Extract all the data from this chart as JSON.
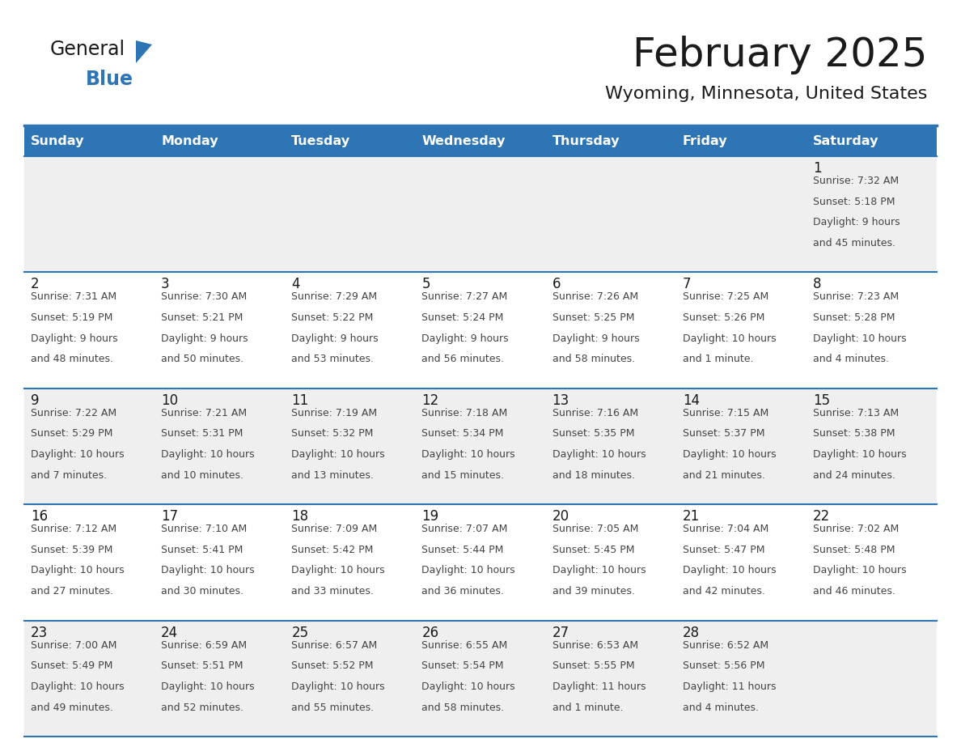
{
  "title": "February 2025",
  "subtitle": "Wyoming, Minnesota, United States",
  "days_of_week": [
    "Sunday",
    "Monday",
    "Tuesday",
    "Wednesday",
    "Thursday",
    "Friday",
    "Saturday"
  ],
  "header_bg": "#2E75B6",
  "header_text_color": "#FFFFFF",
  "cell_bg_odd": "#EFEFEF",
  "cell_bg_even": "#FFFFFF",
  "separator_color": "#2E75B6",
  "text_color": "#444444",
  "day_num_color": "#1a1a1a",
  "title_color": "#1a1a1a",
  "logo_general_color": "#1a1a1a",
  "logo_blue_color": "#2E75B6",
  "logo_triangle_color": "#2E75B6",
  "calendar_data": [
    [
      null,
      null,
      null,
      null,
      null,
      null,
      {
        "day": 1,
        "sunrise": "7:32 AM",
        "sunset": "5:18 PM",
        "daylight": "9 hours and 45 minutes."
      }
    ],
    [
      {
        "day": 2,
        "sunrise": "7:31 AM",
        "sunset": "5:19 PM",
        "daylight": "9 hours and 48 minutes."
      },
      {
        "day": 3,
        "sunrise": "7:30 AM",
        "sunset": "5:21 PM",
        "daylight": "9 hours and 50 minutes."
      },
      {
        "day": 4,
        "sunrise": "7:29 AM",
        "sunset": "5:22 PM",
        "daylight": "9 hours and 53 minutes."
      },
      {
        "day": 5,
        "sunrise": "7:27 AM",
        "sunset": "5:24 PM",
        "daylight": "9 hours and 56 minutes."
      },
      {
        "day": 6,
        "sunrise": "7:26 AM",
        "sunset": "5:25 PM",
        "daylight": "9 hours and 58 minutes."
      },
      {
        "day": 7,
        "sunrise": "7:25 AM",
        "sunset": "5:26 PM",
        "daylight": "10 hours and 1 minute."
      },
      {
        "day": 8,
        "sunrise": "7:23 AM",
        "sunset": "5:28 PM",
        "daylight": "10 hours and 4 minutes."
      }
    ],
    [
      {
        "day": 9,
        "sunrise": "7:22 AM",
        "sunset": "5:29 PM",
        "daylight": "10 hours and 7 minutes."
      },
      {
        "day": 10,
        "sunrise": "7:21 AM",
        "sunset": "5:31 PM",
        "daylight": "10 hours and 10 minutes."
      },
      {
        "day": 11,
        "sunrise": "7:19 AM",
        "sunset": "5:32 PM",
        "daylight": "10 hours and 13 minutes."
      },
      {
        "day": 12,
        "sunrise": "7:18 AM",
        "sunset": "5:34 PM",
        "daylight": "10 hours and 15 minutes."
      },
      {
        "day": 13,
        "sunrise": "7:16 AM",
        "sunset": "5:35 PM",
        "daylight": "10 hours and 18 minutes."
      },
      {
        "day": 14,
        "sunrise": "7:15 AM",
        "sunset": "5:37 PM",
        "daylight": "10 hours and 21 minutes."
      },
      {
        "day": 15,
        "sunrise": "7:13 AM",
        "sunset": "5:38 PM",
        "daylight": "10 hours and 24 minutes."
      }
    ],
    [
      {
        "day": 16,
        "sunrise": "7:12 AM",
        "sunset": "5:39 PM",
        "daylight": "10 hours and 27 minutes."
      },
      {
        "day": 17,
        "sunrise": "7:10 AM",
        "sunset": "5:41 PM",
        "daylight": "10 hours and 30 minutes."
      },
      {
        "day": 18,
        "sunrise": "7:09 AM",
        "sunset": "5:42 PM",
        "daylight": "10 hours and 33 minutes."
      },
      {
        "day": 19,
        "sunrise": "7:07 AM",
        "sunset": "5:44 PM",
        "daylight": "10 hours and 36 minutes."
      },
      {
        "day": 20,
        "sunrise": "7:05 AM",
        "sunset": "5:45 PM",
        "daylight": "10 hours and 39 minutes."
      },
      {
        "day": 21,
        "sunrise": "7:04 AM",
        "sunset": "5:47 PM",
        "daylight": "10 hours and 42 minutes."
      },
      {
        "day": 22,
        "sunrise": "7:02 AM",
        "sunset": "5:48 PM",
        "daylight": "10 hours and 46 minutes."
      }
    ],
    [
      {
        "day": 23,
        "sunrise": "7:00 AM",
        "sunset": "5:49 PM",
        "daylight": "10 hours and 49 minutes."
      },
      {
        "day": 24,
        "sunrise": "6:59 AM",
        "sunset": "5:51 PM",
        "daylight": "10 hours and 52 minutes."
      },
      {
        "day": 25,
        "sunrise": "6:57 AM",
        "sunset": "5:52 PM",
        "daylight": "10 hours and 55 minutes."
      },
      {
        "day": 26,
        "sunrise": "6:55 AM",
        "sunset": "5:54 PM",
        "daylight": "10 hours and 58 minutes."
      },
      {
        "day": 27,
        "sunrise": "6:53 AM",
        "sunset": "5:55 PM",
        "daylight": "11 hours and 1 minute."
      },
      {
        "day": 28,
        "sunrise": "6:52 AM",
        "sunset": "5:56 PM",
        "daylight": "11 hours and 4 minutes."
      },
      null
    ]
  ]
}
